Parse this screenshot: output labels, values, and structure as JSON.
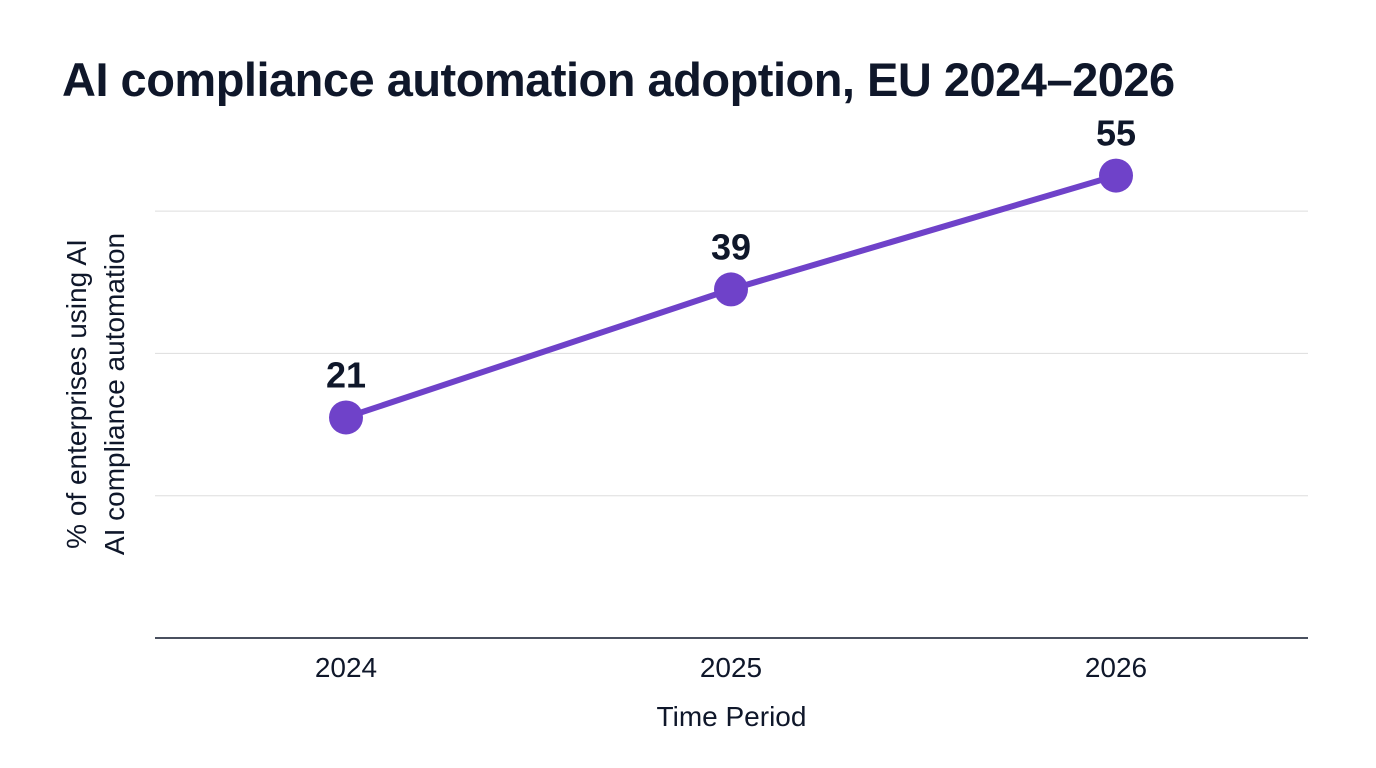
{
  "chart_data": {
    "type": "line",
    "title": "AI compliance automation adoption, EU 2024–2026",
    "xlabel": "Time Period",
    "ylabel_lines": [
      "% of enterprises using AI",
      "AI compliance automation"
    ],
    "categories": [
      "2024",
      "2025",
      "2026"
    ],
    "series": [
      {
        "values": [
          21,
          39,
          55
        ]
      }
    ],
    "ylim": [
      -10,
      60
    ],
    "gridlines": [
      10,
      30,
      50
    ],
    "grid": true,
    "legend": "none",
    "colors": {
      "line": "#6f42c9",
      "grid": "#dddddd",
      "axis": "#0f172a",
      "text": "#0f172a"
    }
  }
}
